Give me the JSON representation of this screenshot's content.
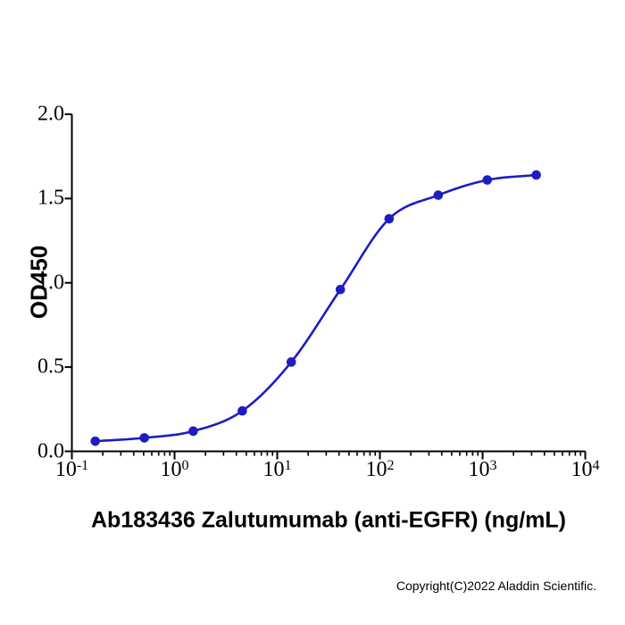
{
  "figure": {
    "copyright": "Copyright(C)2022 Aladdin Scientific."
  },
  "chart_data": {
    "type": "line",
    "subtype": "sigmoidal-dose-response-elisa-binding-curve",
    "title": "",
    "xlabel": "Ab183436 Zalutumumab (anti-EGFR) (ng/mL)",
    "ylabel": "OD450",
    "x_scale": "log10",
    "xlim": [
      0.1,
      10000
    ],
    "ylim": [
      0.0,
      2.0
    ],
    "grid": false,
    "legend_position": "none",
    "line_color": "#1d1dc2",
    "marker_color": "#1d1dc2",
    "axis_color": "#000000",
    "series": [
      {
        "x": [
          0.169,
          0.508,
          1.52,
          4.57,
          13.7,
          41.2,
          123,
          370,
          1111,
          3333
        ],
        "y": [
          0.06,
          0.08,
          0.12,
          0.24,
          0.53,
          0.96,
          1.38,
          1.52,
          1.61,
          1.64
        ]
      }
    ],
    "y_ticks": [
      {
        "label": "2.0",
        "value": 2.0
      },
      {
        "label": "1.5",
        "value": 1.5
      },
      {
        "label": "1.0",
        "value": 1.0
      },
      {
        "label": "0.5",
        "value": 0.5
      },
      {
        "label": "0.0",
        "value": 0.0
      }
    ],
    "x_ticks": [
      {
        "base": "10",
        "exp": "-1",
        "value": 0.1
      },
      {
        "base": "10",
        "exp": "0",
        "value": 1
      },
      {
        "base": "10",
        "exp": "1",
        "value": 10
      },
      {
        "base": "10",
        "exp": "2",
        "value": 100
      },
      {
        "base": "10",
        "exp": "3",
        "value": 1000
      },
      {
        "base": "10",
        "exp": "4",
        "value": 10000
      }
    ]
  }
}
